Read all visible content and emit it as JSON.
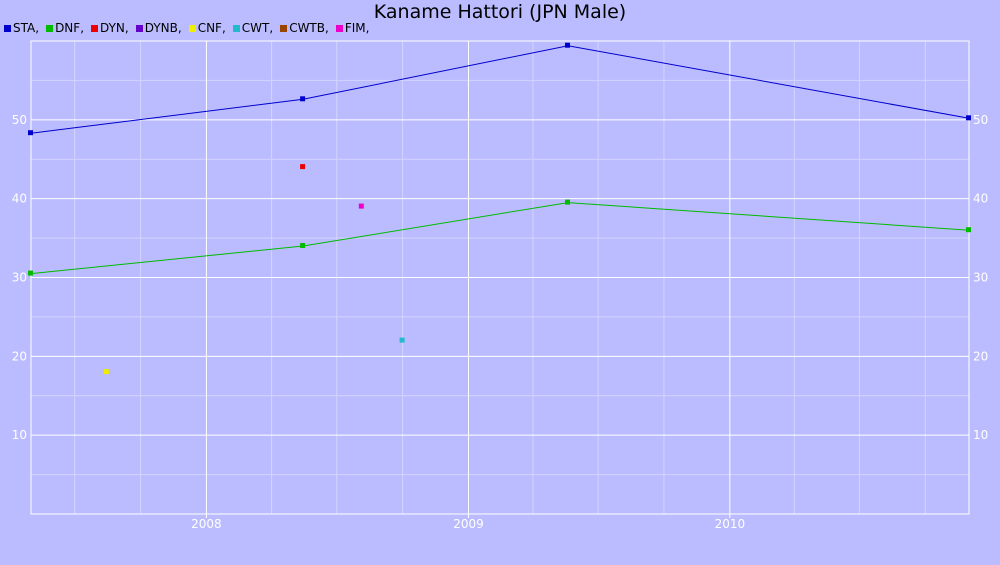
{
  "chart_data": {
    "type": "line",
    "title": "Kaname Hattori (JPN Male)",
    "xlabel": "",
    "ylabel": "",
    "x_ticks": [
      "2008",
      "2009",
      "2010"
    ],
    "y_ticks": [
      10,
      20,
      30,
      40,
      50
    ],
    "xlim": [
      "2007-05-01",
      "2010-12-01"
    ],
    "ylim": [
      0,
      60
    ],
    "grid": true,
    "legend_position": "top-left",
    "series": [
      {
        "name": "STA",
        "color": "#0000cc",
        "lines": true,
        "points": [
          {
            "x": "2007-05-01",
            "y": 48.3
          },
          {
            "x": "2008-05-15",
            "y": 52.6
          },
          {
            "x": "2009-05-20",
            "y": 59.4
          },
          {
            "x": "2010-12-01",
            "y": 50.2
          }
        ]
      },
      {
        "name": "DNF",
        "color": "#00bb00",
        "lines": true,
        "points": [
          {
            "x": "2007-05-01",
            "y": 30.5
          },
          {
            "x": "2008-05-15",
            "y": 34.0
          },
          {
            "x": "2009-05-20",
            "y": 39.5
          },
          {
            "x": "2010-12-01",
            "y": 36.0
          }
        ]
      },
      {
        "name": "DYN",
        "color": "#ee0000",
        "lines": false,
        "points": [
          {
            "x": "2008-05-15",
            "y": 44.0
          }
        ]
      },
      {
        "name": "DYNB",
        "color": "#6600cc",
        "lines": false,
        "points": []
      },
      {
        "name": "CNF",
        "color": "#eeee00",
        "lines": false,
        "points": [
          {
            "x": "2007-08-15",
            "y": 18.0
          }
        ]
      },
      {
        "name": "CWT",
        "color": "#22bbcc",
        "lines": false,
        "points": [
          {
            "x": "2008-10-01",
            "y": 22.0
          }
        ]
      },
      {
        "name": "CWTB",
        "color": "#994400",
        "lines": false,
        "points": []
      },
      {
        "name": "FIM",
        "color": "#ee00cc",
        "lines": false,
        "points": [
          {
            "x": "2008-08-05",
            "y": 39.0
          }
        ]
      }
    ]
  }
}
